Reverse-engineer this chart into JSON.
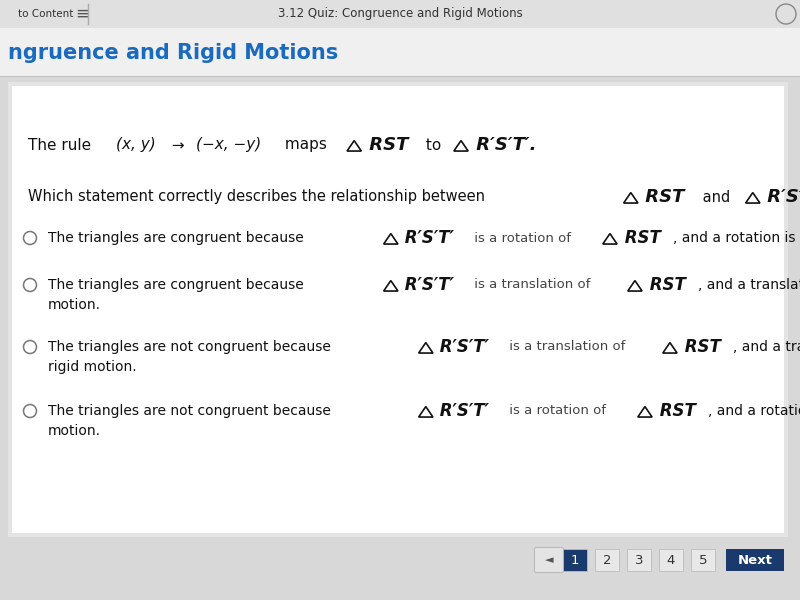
{
  "bg_color": "#d8d8d8",
  "top_bar_color": "#e8e8e8",
  "top_bar_text": "3.12 Quiz: Congruence and Rigid Motions",
  "header_bg": "#f5f5f5",
  "header_text": "ngruence and Rigid Motions",
  "header_text_color": "#1a6abf",
  "content_bg": "#ffffff",
  "nav_numbers": [
    "1",
    "2",
    "3",
    "4",
    "5"
  ],
  "nav_active": 0,
  "nav_active_color": "#1a3a6e",
  "nav_inactive_color": "#e8e8e8",
  "nav_text_color_active": "#ffffff",
  "nav_text_color_inactive": "#333333",
  "nav_next_text": "Next",
  "nav_next_color": "#1a3a6e",
  "nav_prev_text": "◄"
}
